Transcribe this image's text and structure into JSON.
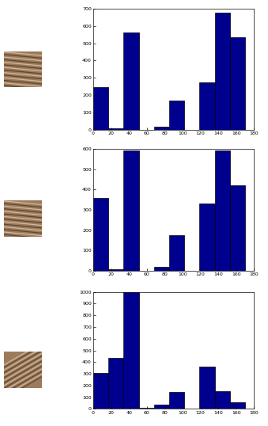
{
  "chart_data": [
    {
      "type": "histogram",
      "color": "#00008f",
      "bins": [
        0,
        17,
        34,
        51,
        68,
        85,
        102,
        119,
        136,
        153,
        170
      ],
      "counts": [
        245,
        10,
        560,
        0,
        20,
        170,
        0,
        275,
        675,
        535
      ],
      "xlim": [
        0,
        180
      ],
      "xticks": [
        0,
        20,
        40,
        60,
        80,
        100,
        120,
        140,
        160,
        180
      ],
      "ylim": [
        0,
        700
      ],
      "yticks": [
        0,
        100,
        200,
        300,
        400,
        500,
        600,
        700
      ]
    },
    {
      "type": "histogram",
      "color": "#00008f",
      "bins": [
        0,
        17,
        34,
        51,
        68,
        85,
        102,
        119,
        136,
        153,
        170
      ],
      "counts": [
        360,
        5,
        595,
        0,
        20,
        175,
        0,
        330,
        595,
        420
      ],
      "xlim": [
        0,
        180
      ],
      "xticks": [
        0,
        20,
        40,
        60,
        80,
        100,
        120,
        140,
        160,
        180
      ],
      "ylim": [
        0,
        600
      ],
      "yticks": [
        0,
        100,
        200,
        300,
        400,
        500,
        600
      ]
    },
    {
      "type": "histogram",
      "color": "#00008f",
      "bins": [
        0,
        17,
        34,
        51,
        68,
        85,
        102,
        119,
        136,
        153,
        170
      ],
      "counts": [
        305,
        435,
        1000,
        10,
        35,
        145,
        0,
        360,
        155,
        55
      ],
      "xlim": [
        0,
        180
      ],
      "xticks": [
        0,
        20,
        40,
        60,
        80,
        100,
        120,
        140,
        160,
        180
      ],
      "ylim": [
        0,
        1000
      ],
      "yticks": [
        0,
        100,
        200,
        300,
        400,
        500,
        600,
        700,
        800,
        900,
        1000
      ]
    }
  ]
}
